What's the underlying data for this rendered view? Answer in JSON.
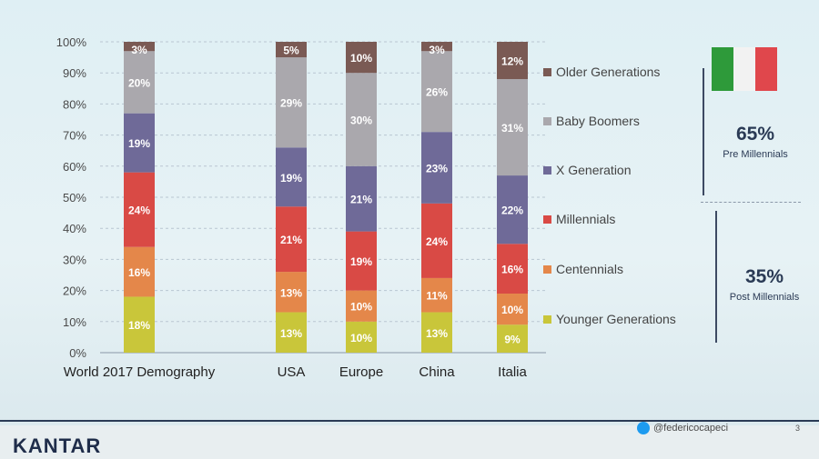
{
  "chart_data": {
    "type": "bar",
    "stacked": true,
    "categories": [
      "World 2017 Demography",
      "USA",
      "Europe",
      "China",
      "Italia"
    ],
    "yticks": [
      "0%",
      "10%",
      "20%",
      "30%",
      "40%",
      "50%",
      "60%",
      "70%",
      "80%",
      "90%",
      "100%"
    ],
    "ylim": [
      0,
      100
    ],
    "series": [
      {
        "name": "Younger Generations",
        "color": "#c9c63a",
        "values": [
          18,
          13,
          10,
          13,
          9
        ]
      },
      {
        "name": "Centennials",
        "color": "#e4874a",
        "values": [
          16,
          13,
          10,
          11,
          10
        ]
      },
      {
        "name": "Millennials",
        "color": "#d94a45",
        "values": [
          24,
          21,
          19,
          24,
          16
        ]
      },
      {
        "name": "X Generation",
        "color": "#6f6a98",
        "values": [
          19,
          19,
          21,
          23,
          22
        ]
      },
      {
        "name": "Baby Boomers",
        "color": "#aaa8ad",
        "values": [
          20,
          29,
          30,
          26,
          31
        ]
      },
      {
        "name": "Older Generations",
        "color": "#7a5a54",
        "values": [
          3,
          5,
          10,
          3,
          12
        ]
      }
    ],
    "labels": [
      [
        "18%",
        "16%",
        "24%",
        "19%",
        "20%",
        "3%"
      ],
      [
        "13%",
        "13%",
        "21%",
        "19%",
        "29%",
        "5%"
      ],
      [
        "10%",
        "10%",
        "19%",
        "21%",
        "30%",
        "10%"
      ],
      [
        "13%",
        "11%",
        "24%",
        "23%",
        "26%",
        "3%"
      ],
      [
        "9%",
        "10%",
        "16%",
        "22%",
        "31%",
        "12%"
      ]
    ],
    "legend_position": "right",
    "grid": true
  },
  "legend_order": [
    "Older Generations",
    "Baby Boomers",
    "X Generation",
    "Millennials",
    "Centennials",
    "Younger Generations"
  ],
  "side": {
    "pre_value": "65%",
    "pre_label": "Pre Millennials",
    "post_value": "35%",
    "post_label": "Post Millennials"
  },
  "flag_colors": [
    "#2e9a3a",
    "#f2f2f2",
    "#e0474c"
  ],
  "footer": {
    "brand": "KANTAR",
    "handle": "@federicocapeci",
    "page": "3"
  }
}
